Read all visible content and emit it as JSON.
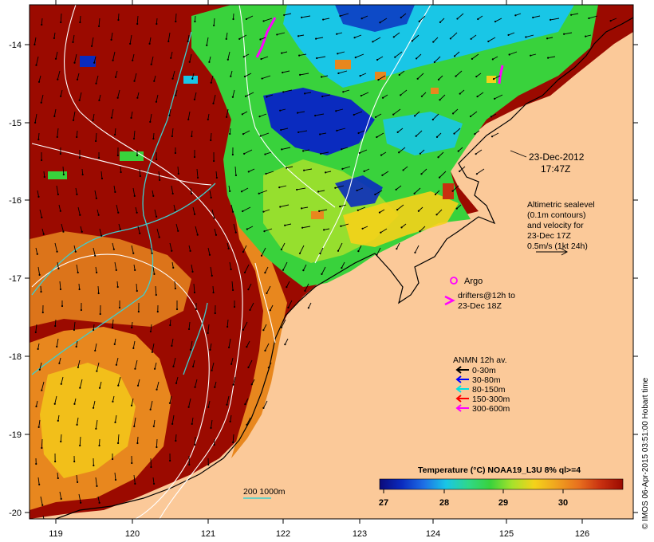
{
  "map": {
    "lon_ticks": [
      "119",
      "120",
      "121",
      "122",
      "123",
      "124",
      "125",
      "126"
    ],
    "lat_ticks": [
      "-14",
      "-15",
      "-16",
      "-17",
      "-18",
      "-19",
      "-20"
    ],
    "colors": {
      "land": "#fbc999",
      "ocean_warm": "#9b0a00",
      "ocean_orange": "#e8871e",
      "ocean_yellow": "#f5d21a",
      "ocean_green": "#39d23c",
      "ocean_lime": "#a7e22b",
      "ocean_cyan": "#19c6e6",
      "ocean_blue": "#0a2bbf",
      "contour": "#ffffff",
      "bathy_cyan": "#3cd0d0",
      "magenta": "#ff00ff"
    }
  },
  "annotations": {
    "date_line1": "23-Dec-2012",
    "date_line2": "17:47Z",
    "altimetry": [
      "Altimetric sealevel",
      "(0.1m contours)",
      "and velocity for",
      "23-Dec 17Z",
      "0.5m/s (1kt 24h)"
    ],
    "argo_label": "Argo",
    "drifters_line1": "drifters@12h to",
    "drifters_line2": "23-Dec 18Z",
    "anmn_title": "ANMN 12h av.",
    "anmn_items": [
      {
        "label": "0-30m",
        "color": "#000000"
      },
      {
        "label": "30-80m",
        "color": "#0000ff"
      },
      {
        "label": "80-150m",
        "color": "#00e0e0"
      },
      {
        "label": "150-300m",
        "color": "#ff0000"
      },
      {
        "label": "300-600m",
        "color": "#ff00ff"
      }
    ],
    "bathy_label": "200  1000m",
    "colorbar_title": "Temperature (°C) NOAA19_L3U 8% ql>=4",
    "colorbar_ticks": [
      "27",
      "28",
      "29",
      "30"
    ],
    "colorbar_colors": [
      "#0b0a7a",
      "#0a2bbf",
      "#1e6fe6",
      "#19c6e6",
      "#2fd88a",
      "#39d23c",
      "#a7e22b",
      "#f5d21a",
      "#f0a31f",
      "#e8701e",
      "#c83010",
      "#9b0a00"
    ],
    "credit": "© IMOS 06-Apr-2015 03:51:00 Hobart time"
  }
}
